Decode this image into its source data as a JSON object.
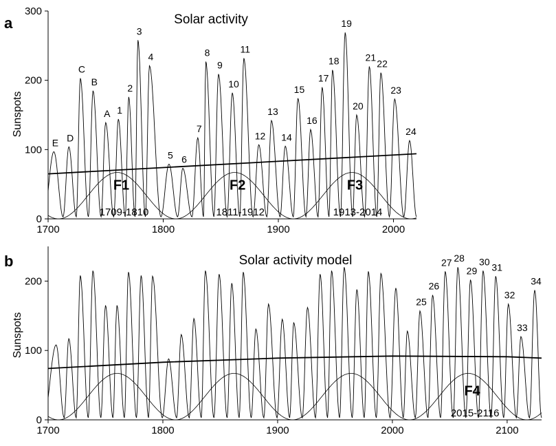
{
  "chart_data": [
    {
      "type": "line",
      "panel_label": "a",
      "title": "Solar activity",
      "xlabel": "",
      "ylabel": "Sunspots",
      "xlim": [
        1700,
        2020
      ],
      "ylim": [
        0,
        300
      ],
      "xticks": [
        "1700",
        "1800",
        "1900",
        "2000"
      ],
      "yticks": [
        "0",
        "100",
        "200",
        "300"
      ],
      "cycles": [
        {
          "label": "E",
          "year": 1705,
          "value": 97
        },
        {
          "label": "D",
          "year": 1718,
          "value": 104
        },
        {
          "label": "C",
          "year": 1728,
          "value": 203
        },
        {
          "label": "B",
          "year": 1739,
          "value": 185
        },
        {
          "label": "A",
          "year": 1750,
          "value": 139
        },
        {
          "label": "1",
          "year": 1761,
          "value": 144
        },
        {
          "label": "2",
          "year": 1770,
          "value": 176
        },
        {
          "label": "3",
          "year": 1778,
          "value": 258
        },
        {
          "label": "4",
          "year": 1788,
          "value": 221
        },
        {
          "label": "5",
          "year": 1805,
          "value": 79
        },
        {
          "label": "6",
          "year": 1817,
          "value": 73
        },
        {
          "label": "7",
          "year": 1830,
          "value": 117
        },
        {
          "label": "8",
          "year": 1837,
          "value": 227
        },
        {
          "label": "9",
          "year": 1848,
          "value": 209
        },
        {
          "label": "10",
          "year": 1860,
          "value": 182
        },
        {
          "label": "11",
          "year": 1870,
          "value": 232
        },
        {
          "label": "12",
          "year": 1883,
          "value": 107
        },
        {
          "label": "13",
          "year": 1894,
          "value": 142
        },
        {
          "label": "14",
          "year": 1906,
          "value": 105
        },
        {
          "label": "15",
          "year": 1917,
          "value": 174
        },
        {
          "label": "16",
          "year": 1928,
          "value": 129
        },
        {
          "label": "17",
          "year": 1938,
          "value": 190
        },
        {
          "label": "18",
          "year": 1947,
          "value": 215
        },
        {
          "label": "19",
          "year": 1958,
          "value": 269
        },
        {
          "label": "20",
          "year": 1968,
          "value": 150
        },
        {
          "label": "21",
          "year": 1979,
          "value": 220
        },
        {
          "label": "22",
          "year": 1989,
          "value": 211
        },
        {
          "label": "23",
          "year": 2001,
          "value": 173
        },
        {
          "label": "24",
          "year": 2014,
          "value": 113
        }
      ],
      "trend": {
        "x": [
          1700,
          2020
        ],
        "y": [
          65,
          94
        ]
      },
      "fcurve": {
        "amplitude": 67,
        "period_years": 102,
        "first_minimum_year": 1709
      },
      "annotations": [
        {
          "label": "F1",
          "range": "1709-1810",
          "center_year": 1760
        },
        {
          "label": "F2",
          "range": "1811-1912",
          "center_year": 1861
        },
        {
          "label": "F3",
          "range": "1913-2014",
          "center_year": 1963
        }
      ]
    },
    {
      "type": "line",
      "panel_label": "b",
      "title": "Solar activity model",
      "xlabel": "",
      "ylabel": "Sunspots",
      "xlim": [
        1700,
        2130
      ],
      "ylim": [
        0,
        250
      ],
      "xticks": [
        "1700",
        "1800",
        "1900",
        "2000",
        "2100"
      ],
      "yticks": [
        "0",
        "100",
        "200"
      ],
      "cycles": [
        {
          "label": "",
          "year": 1707,
          "value": 108
        },
        {
          "label": "",
          "year": 1718,
          "value": 117
        },
        {
          "label": "",
          "year": 1728,
          "value": 208
        },
        {
          "label": "",
          "year": 1739,
          "value": 215
        },
        {
          "label": "",
          "year": 1750,
          "value": 165
        },
        {
          "label": "",
          "year": 1760,
          "value": 165
        },
        {
          "label": "",
          "year": 1770,
          "value": 213
        },
        {
          "label": "",
          "year": 1781,
          "value": 208
        },
        {
          "label": "",
          "year": 1791,
          "value": 207
        },
        {
          "label": "",
          "year": 1805,
          "value": 88
        },
        {
          "label": "",
          "year": 1816,
          "value": 123
        },
        {
          "label": "",
          "year": 1827,
          "value": 146
        },
        {
          "label": "",
          "year": 1837,
          "value": 215
        },
        {
          "label": "",
          "year": 1849,
          "value": 210
        },
        {
          "label": "",
          "year": 1860,
          "value": 197
        },
        {
          "label": "",
          "year": 1870,
          "value": 213
        },
        {
          "label": "",
          "year": 1881,
          "value": 131
        },
        {
          "label": "",
          "year": 1892,
          "value": 167
        },
        {
          "label": "",
          "year": 1904,
          "value": 145
        },
        {
          "label": "",
          "year": 1914,
          "value": 140
        },
        {
          "label": "",
          "year": 1926,
          "value": 162
        },
        {
          "label": "",
          "year": 1937,
          "value": 210
        },
        {
          "label": "",
          "year": 1947,
          "value": 215
        },
        {
          "label": "",
          "year": 1958,
          "value": 220
        },
        {
          "label": "",
          "year": 1969,
          "value": 188
        },
        {
          "label": "",
          "year": 1979,
          "value": 214
        },
        {
          "label": "",
          "year": 1990,
          "value": 211
        },
        {
          "label": "",
          "year": 2003,
          "value": 190
        },
        {
          "label": "",
          "year": 2013,
          "value": 128
        },
        {
          "label": "25",
          "year": 2024,
          "value": 157
        },
        {
          "label": "26",
          "year": 2035,
          "value": 180
        },
        {
          "label": "27",
          "year": 2046,
          "value": 214
        },
        {
          "label": "28",
          "year": 2057,
          "value": 220
        },
        {
          "label": "29",
          "year": 2068,
          "value": 202
        },
        {
          "label": "30",
          "year": 2079,
          "value": 215
        },
        {
          "label": "31",
          "year": 2090,
          "value": 207
        },
        {
          "label": "32",
          "year": 2101,
          "value": 167
        },
        {
          "label": "33",
          "year": 2112,
          "value": 120
        },
        {
          "label": "34",
          "year": 2124,
          "value": 187
        }
      ],
      "trend": {
        "x": [
          1700,
          1800,
          1900,
          2000,
          2100,
          2130
        ],
        "y": [
          74,
          83,
          89,
          92,
          91,
          89
        ]
      },
      "fcurve": {
        "amplitude": 67,
        "period_years": 102,
        "first_minimum_year": 1709
      },
      "annotations": [
        {
          "label": "F4",
          "range": "2015-2116",
          "center_year": 2066
        }
      ]
    }
  ]
}
